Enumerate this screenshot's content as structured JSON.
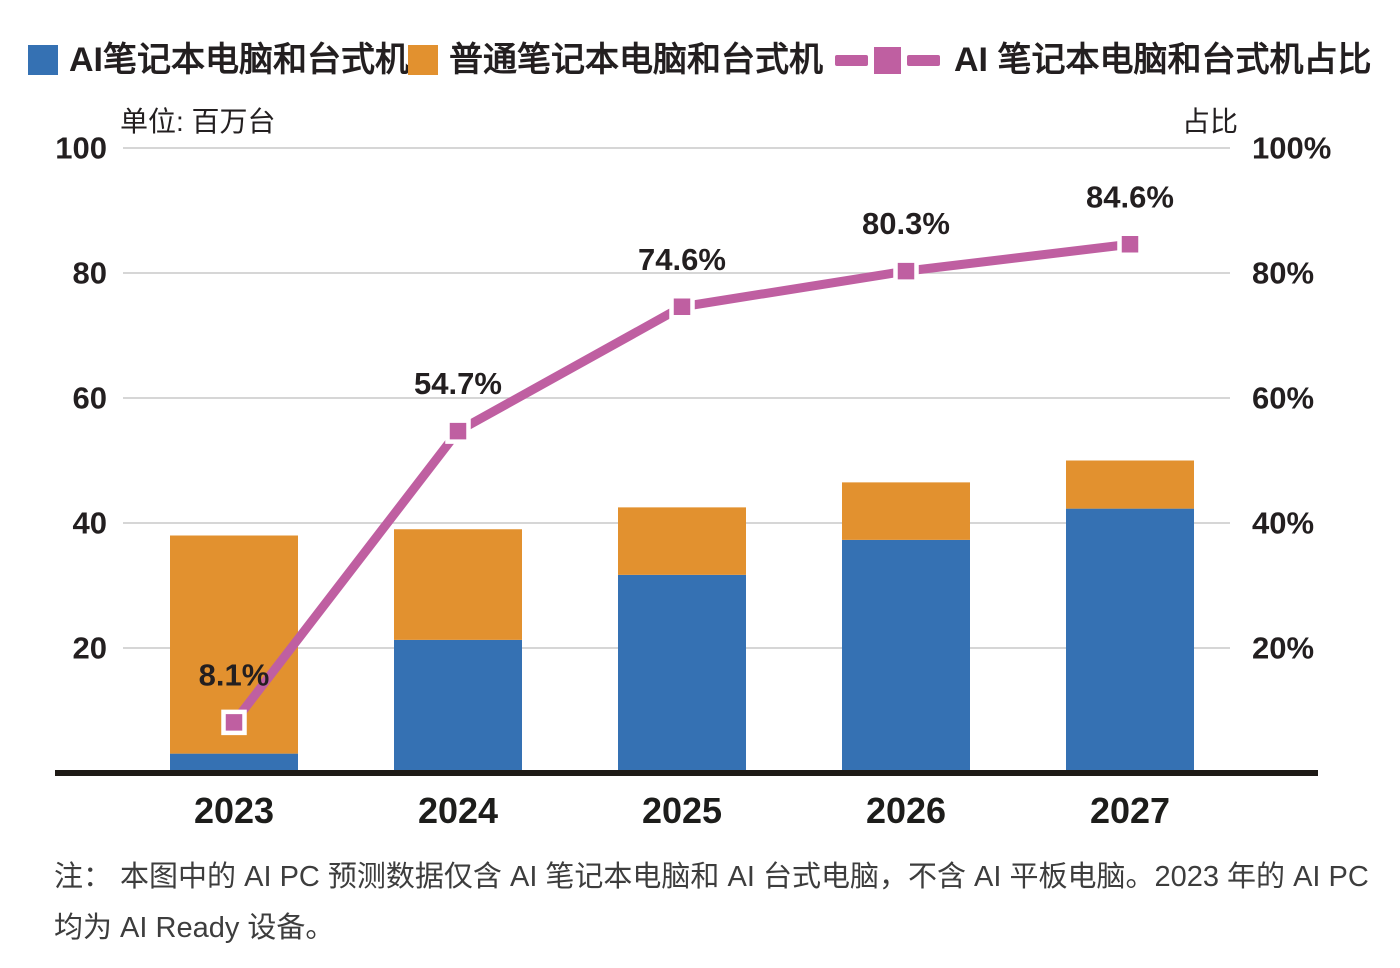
{
  "legend": {
    "items": [
      {
        "label": "AI笔记本电脑和台式机",
        "color": "#3571b3",
        "type": "square"
      },
      {
        "label": "普通笔记本电脑和台式机",
        "color": "#e2912f",
        "type": "square"
      },
      {
        "label": "AI 笔记本电脑和台式机占比",
        "color": "#bf5fa1",
        "type": "line-marker"
      }
    ]
  },
  "axes": {
    "left_unit_label": "单位: 百万台",
    "right_unit_label": "占比"
  },
  "note": {
    "lines": [
      "注： 本图中的 AI PC 预测数据仅含 AI 笔记本电脑和 AI 台式电脑，不含 AI 平板电脑。2023 年的 AI PC",
      "均为 AI Ready 设备。"
    ]
  },
  "chart_data": {
    "type": "combo",
    "categories": [
      "2023",
      "2024",
      "2025",
      "2026",
      "2027"
    ],
    "series": [
      {
        "name": "AI笔记本电脑和台式机",
        "type": "bar",
        "stack": "pc",
        "color": "#3571b3",
        "values": [
          3.1,
          21.3,
          31.7,
          37.3,
          42.3
        ]
      },
      {
        "name": "普通笔记本电脑和台式机",
        "type": "bar",
        "stack": "pc",
        "color": "#e2912f",
        "values": [
          34.9,
          17.7,
          10.8,
          9.2,
          7.7
        ]
      },
      {
        "name": "AI 笔记本电脑和台式机占比",
        "type": "line",
        "axis": "right",
        "color": "#bf5fa1",
        "values": [
          8.1,
          54.7,
          74.6,
          80.3,
          84.6
        ],
        "labels": [
          "8.1%",
          "54.7%",
          "74.6%",
          "80.3%",
          "84.6%"
        ],
        "marker": "square",
        "marker_border": "#ffffff"
      }
    ],
    "stack_totals": [
      38,
      39,
      42.5,
      46.5,
      50
    ],
    "left_axis": {
      "label": "单位: 百万台",
      "tick_values": [
        100,
        80,
        60,
        40,
        20
      ],
      "tick_labels": [
        "100",
        "80",
        "60",
        "40",
        "20"
      ],
      "min": 0,
      "max": 100
    },
    "right_axis": {
      "label": "占比",
      "tick_values": [
        100,
        80,
        60,
        40,
        20
      ],
      "tick_labels": [
        "100%",
        "80%",
        "60%",
        "40%",
        "20%"
      ],
      "min": 0,
      "max": 100
    },
    "grid": true,
    "legend_position": "top",
    "colors": {
      "grid": "#c9c9c9",
      "axis": "#1e1a16",
      "text": "#231f20",
      "note": "#3d3d3d",
      "background": "#ffffff"
    }
  }
}
